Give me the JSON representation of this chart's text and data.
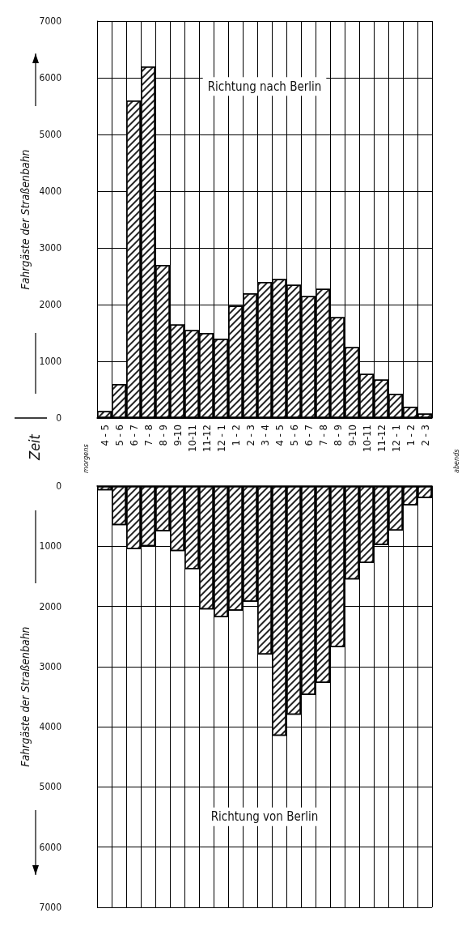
{
  "chart_data": [
    {
      "type": "bar",
      "ylabel": "Fahrgäste der Straßenbahn",
      "categories": [
        "4 - 5",
        "5 - 6",
        "6 - 7",
        "7 - 8",
        "8 - 9",
        "9-10",
        "10-11",
        "11-12",
        "12 - 1",
        "1 - 2",
        "2 - 3",
        "3 - 4",
        "4 - 5",
        "5 - 6",
        "6 - 7",
        "7 - 8",
        "8 - 9",
        "9-10",
        "10-11",
        "11-12",
        "12 - 1",
        "1 - 2",
        "2 - 3"
      ],
      "series": [
        {
          "color": "#ffffff",
          "values": [
            120,
            600,
            5600,
            6200,
            2700,
            1650,
            1550,
            1500,
            1400,
            1980,
            2200,
            2400,
            2450,
            2350,
            2150,
            2280,
            1780,
            1250,
            780,
            680,
            430,
            200,
            80
          ]
        }
      ],
      "ylim": [
        0,
        7000
      ],
      "yticks": [
        0,
        1000,
        2000,
        3000,
        4000,
        5000,
        6000,
        7000
      ],
      "grid": true,
      "annotations": [
        "Richtung nach Berlin",
        "morgens",
        "abends",
        "Zeit"
      ]
    },
    {
      "type": "bar",
      "ylabel": "Fahrgäste der Straßenbahn",
      "categories": [
        null,
        null,
        null,
        null,
        null,
        null,
        null,
        null,
        null,
        null,
        null,
        null,
        null,
        null,
        null,
        null,
        null,
        null,
        null,
        null,
        null,
        null,
        null
      ],
      "series": [
        {
          "color": "#ffffff",
          "values": [
            70,
            650,
            1050,
            1000,
            750,
            1080,
            1380,
            2050,
            2180,
            2070,
            1920,
            2800,
            4150,
            3800,
            3470,
            3270,
            2680,
            1550,
            1280,
            980,
            740,
            320,
            200
          ]
        }
      ],
      "ylim": [
        7000,
        0
      ],
      "yticks": [
        0,
        1000,
        2000,
        3000,
        4000,
        5000,
        6000,
        7000
      ],
      "grid": true,
      "tick_labels": "y",
      "annotations": [
        "Richtung von Berlin"
      ]
    }
  ]
}
